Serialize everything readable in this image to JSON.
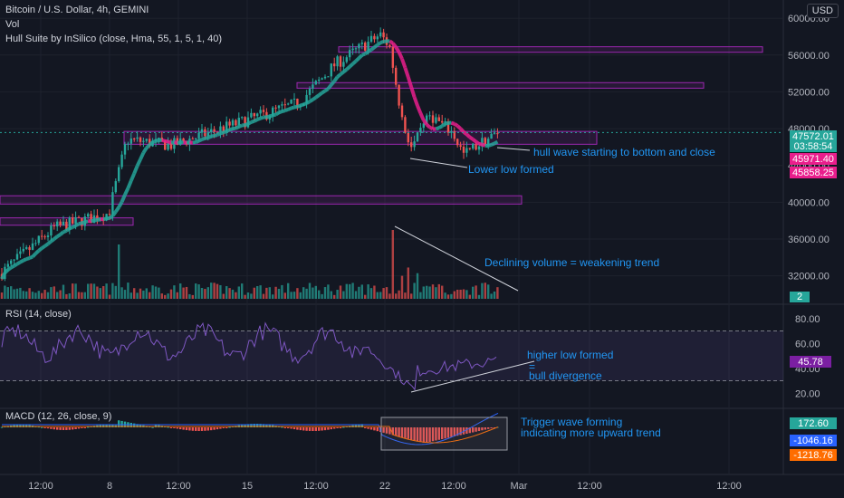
{
  "header": {
    "symbol": "Bitcoin / U.S. Dollar, 4h, GEMINI",
    "vol": "Vol",
    "indicator": "Hull Suite by InSilico (close, Hma, 55, 1, 5, 1, 40)",
    "currency": "USD"
  },
  "rsi_title": "RSI (14, close)",
  "macd_title": "MACD (12, 26, close, 9)",
  "colors": {
    "bg": "#131722",
    "up": "#26a69a",
    "down": "#ef5350",
    "hull_up": "#26a69a",
    "hull_down": "#e91e8c",
    "zone": "#9c27b0",
    "anno": "#2196f3"
  },
  "annotations": {
    "hull": "hull wave starting to bottom and close",
    "lower_low": "Lower low formed",
    "volume": "Declining volume = weakening trend",
    "higher_low": "higher low formed",
    "eq": "=",
    "bull_div": "bull divergence",
    "trigger1": "Trigger wave forming",
    "trigger2": "indicating more upward trend"
  },
  "price_tags": {
    "last": "47572.01",
    "timer": "03:58:54",
    "tag2": "45971.40",
    "tag3": "45858.25",
    "vol": "2"
  },
  "rsi_tag": "45.78",
  "macd_tags": [
    "172.60",
    "-1046.16",
    "-1218.76"
  ],
  "chart_data": {
    "type": "candlestick",
    "price_axis": {
      "ticks": [
        "60000.00",
        "56000.00",
        "52000.00",
        "48000.00",
        "44000.00",
        "40000.00",
        "36000.00",
        "32000.00"
      ],
      "ylim": [
        29500,
        61000
      ]
    },
    "rsi_axis": {
      "ticks": [
        "80.00",
        "60.00",
        "40.00",
        "20.00"
      ],
      "bands": [
        70,
        30
      ]
    },
    "x_ticks": [
      "12:00",
      "8",
      "12:00",
      "15",
      "12:00",
      "22",
      "12:00",
      "Mar",
      "12:00",
      "12:00"
    ],
    "key_prices": {
      "start": 31500,
      "peak": 58300,
      "support": 46000,
      "last": 47572
    },
    "zones": [
      {
        "from": 56300,
        "to": 56900
      },
      {
        "from": 52400,
        "to": 53000
      },
      {
        "from": 46300,
        "to": 47700
      },
      {
        "from": 39800,
        "to": 40700
      },
      {
        "from": 37500,
        "to": 38300
      }
    ]
  }
}
